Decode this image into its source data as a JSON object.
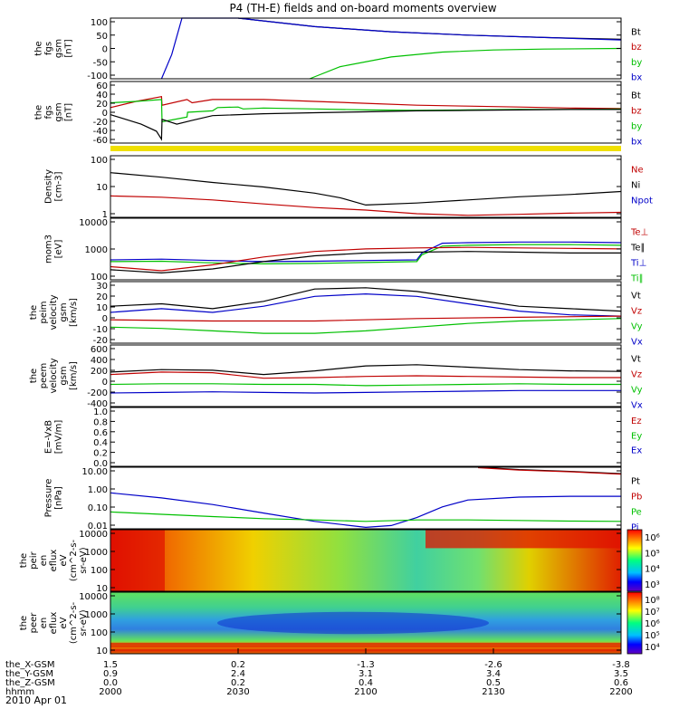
{
  "title": "P4 (TH-E) fields and on-board moments overview",
  "date": "2010 Apr 01",
  "colors": {
    "black": "#000000",
    "red": "#c00000",
    "green": "#00c000",
    "blue": "#0000c8",
    "yellow": "#f0e000"
  },
  "chart_data": [
    {
      "type": "line",
      "ylabel_lines": [
        "the",
        "fgs",
        "gsm",
        "[nT]"
      ],
      "yticks": [
        "100",
        "50",
        "0",
        "-50",
        "-100"
      ],
      "ylim": [
        -100,
        100
      ],
      "legend": [
        {
          "label": "Bt",
          "color": "black"
        },
        {
          "label": "bz",
          "color": "red"
        },
        {
          "label": "by",
          "color": "green"
        },
        {
          "label": "bx",
          "color": "blue"
        }
      ],
      "series": [
        {
          "color": "black",
          "x": [
            0.25,
            0.4,
            0.55,
            0.7,
            0.85,
            1.0
          ],
          "y": [
            100,
            72,
            55,
            44,
            36,
            30
          ]
        },
        {
          "color": "green",
          "x": [
            0.39,
            0.45,
            0.55,
            0.65,
            0.75,
            0.85,
            1.0
          ],
          "y": [
            -100,
            -60,
            -28,
            -12,
            -5,
            -2,
            0
          ]
        },
        {
          "color": "blue",
          "x": [
            0.1,
            0.12,
            0.14,
            0.25,
            0.4,
            0.55,
            0.7,
            0.85,
            1.0
          ],
          "y": [
            -100,
            -20,
            100,
            100,
            72,
            55,
            44,
            36,
            28
          ]
        }
      ]
    },
    {
      "type": "line",
      "ylabel_lines": [
        "the",
        "fgs",
        "gsm",
        "[nT]"
      ],
      "yticks": [
        "60",
        "40",
        "20",
        "0",
        "-20",
        "-40",
        "-60"
      ],
      "ylim": [
        -70,
        60
      ],
      "legend": [
        {
          "label": "Bt",
          "color": "black"
        },
        {
          "label": "bz",
          "color": "red"
        },
        {
          "label": "by",
          "color": "green"
        },
        {
          "label": "bx",
          "color": "blue"
        }
      ],
      "series": [
        {
          "color": "red",
          "x": [
            0,
            0.05,
            0.1,
            0.101,
            0.15,
            0.16,
            0.2,
            0.3,
            0.4,
            0.5,
            0.6,
            0.7,
            0.8,
            0.9,
            1.0
          ],
          "y": [
            5,
            18,
            28,
            10,
            22,
            15,
            22,
            22,
            18,
            14,
            10,
            8,
            6,
            4,
            3
          ]
        },
        {
          "color": "green",
          "x": [
            0,
            0.05,
            0.1,
            0.101,
            0.15,
            0.151,
            0.2,
            0.21,
            0.25,
            0.26,
            0.3,
            0.4,
            0.5,
            0.6,
            0.7,
            0.8,
            0.9,
            1.0
          ],
          "y": [
            15,
            18,
            22,
            -25,
            -15,
            -5,
            -2,
            5,
            6,
            2,
            4,
            2,
            0,
            -1,
            0,
            1,
            1,
            2
          ]
        },
        {
          "color": "black",
          "x": [
            0,
            0.03,
            0.06,
            0.09,
            0.1,
            0.101,
            0.13,
            0.16,
            0.2,
            0.3,
            0.4,
            0.5,
            0.6,
            0.7,
            0.8,
            0.9,
            1.0
          ],
          "y": [
            -10,
            -20,
            -30,
            -45,
            -62,
            -20,
            -30,
            -22,
            -12,
            -8,
            -6,
            -4,
            -2,
            -1,
            0,
            1,
            1
          ]
        }
      ],
      "status_bar_color": "yellow"
    },
    {
      "type": "line",
      "yscale": "log",
      "ylabel_lines": [
        "Density",
        "[cm-3]"
      ],
      "yticks": [
        "100",
        "10",
        "1"
      ],
      "ylim": [
        0.2,
        200
      ],
      "legend": [
        {
          "label": "Ne",
          "color": "red"
        },
        {
          "label": "Ni",
          "color": "black"
        },
        {
          "label": "Npot",
          "color": "blue"
        }
      ],
      "series": [
        {
          "color": "black",
          "x": [
            0,
            0.1,
            0.2,
            0.3,
            0.4,
            0.45,
            0.5,
            0.6,
            0.7,
            0.8,
            0.9,
            1.0
          ],
          "y": [
            30,
            18,
            10,
            6,
            3,
            1.8,
            0.8,
            1.0,
            1.4,
            2.0,
            2.6,
            3.6
          ]
        },
        {
          "color": "red",
          "x": [
            0,
            0.1,
            0.2,
            0.3,
            0.4,
            0.5,
            0.6,
            0.7,
            0.8,
            0.9,
            1.0
          ],
          "y": [
            2.2,
            1.9,
            1.4,
            0.9,
            0.6,
            0.45,
            0.3,
            0.25,
            0.28,
            0.32,
            0.35
          ]
        }
      ]
    },
    {
      "type": "line",
      "yscale": "log",
      "ylabel_lines": [
        "mom3",
        "[eV]"
      ],
      "yticks": [
        "10000",
        "1000",
        "100"
      ],
      "ylim": [
        40,
        20000
      ],
      "legend": [
        {
          "label": "Te⊥",
          "color": "red"
        },
        {
          "label": "Te∥",
          "color": "black"
        },
        {
          "label": "Ti⊥",
          "color": "blue"
        },
        {
          "label": "Ti∥",
          "color": "green"
        }
      ],
      "series": [
        {
          "color": "blue",
          "x": [
            0,
            0.1,
            0.2,
            0.3,
            0.4,
            0.5,
            0.6,
            0.61,
            0.65,
            0.7,
            0.8,
            0.9,
            1.0
          ],
          "y": [
            300,
            320,
            280,
            250,
            260,
            280,
            300,
            600,
            1600,
            1700,
            1800,
            1800,
            1700
          ]
        },
        {
          "color": "green",
          "x": [
            0,
            0.1,
            0.2,
            0.3,
            0.4,
            0.5,
            0.6,
            0.61,
            0.65,
            0.7,
            0.8,
            0.9,
            1.0
          ],
          "y": [
            250,
            260,
            220,
            200,
            210,
            230,
            250,
            500,
            1200,
            1300,
            1400,
            1400,
            1300
          ]
        },
        {
          "color": "red",
          "x": [
            0,
            0.1,
            0.2,
            0.3,
            0.4,
            0.5,
            0.6,
            0.7,
            0.8,
            0.9,
            1.0
          ],
          "y": [
            150,
            100,
            180,
            400,
            700,
            900,
            1000,
            1050,
            1000,
            950,
            900
          ]
        },
        {
          "color": "black",
          "x": [
            0,
            0.1,
            0.2,
            0.3,
            0.4,
            0.5,
            0.6,
            0.7,
            0.8,
            0.9,
            1.0
          ],
          "y": [
            110,
            80,
            120,
            250,
            450,
            600,
            650,
            700,
            650,
            600,
            600
          ]
        }
      ]
    },
    {
      "type": "line",
      "ylabel_lines": [
        "the",
        "peim",
        "velocity",
        "gsm",
        "[km/s]"
      ],
      "yticks": [
        "30",
        "20",
        "10",
        "0",
        "-10",
        "-20"
      ],
      "ylim": [
        -20,
        30
      ],
      "legend": [
        {
          "label": "Vt",
          "color": "black"
        },
        {
          "label": "Vz",
          "color": "red"
        },
        {
          "label": "Vy",
          "color": "green"
        },
        {
          "label": "Vx",
          "color": "blue"
        }
      ],
      "series": [
        {
          "color": "black",
          "x": [
            0,
            0.1,
            0.2,
            0.3,
            0.4,
            0.5,
            0.6,
            0.7,
            0.8,
            0.9,
            1.0
          ],
          "y": [
            10,
            12,
            8,
            14,
            24,
            25,
            22,
            16,
            10,
            8,
            6
          ]
        },
        {
          "color": "blue",
          "x": [
            0,
            0.1,
            0.2,
            0.3,
            0.4,
            0.5,
            0.6,
            0.7,
            0.8,
            0.9,
            1.0
          ],
          "y": [
            5,
            8,
            5,
            10,
            18,
            20,
            18,
            12,
            6,
            3,
            2
          ]
        },
        {
          "color": "red",
          "x": [
            0,
            0.2,
            0.4,
            0.6,
            0.8,
            1.0
          ],
          "y": [
            -1,
            -2,
            -2,
            0,
            1,
            2
          ]
        },
        {
          "color": "green",
          "x": [
            0,
            0.1,
            0.2,
            0.3,
            0.4,
            0.5,
            0.6,
            0.7,
            0.8,
            0.9,
            1.0
          ],
          "y": [
            -7,
            -8,
            -10,
            -12,
            -12,
            -10,
            -7,
            -4,
            -2,
            -1,
            0
          ]
        }
      ]
    },
    {
      "type": "line",
      "ylabel_lines": [
        "the",
        "peem",
        "velocity",
        "gsm",
        "[km/s]"
      ],
      "yticks": [
        "600",
        "400",
        "200",
        "0",
        "-200",
        "-400"
      ],
      "ylim": [
        -400,
        600
      ],
      "legend": [
        {
          "label": "Vt",
          "color": "black"
        },
        {
          "label": "Vz",
          "color": "red"
        },
        {
          "label": "Vy",
          "color": "green"
        },
        {
          "label": "Vx",
          "color": "blue"
        }
      ],
      "series": [
        {
          "color": "black",
          "x": [
            0,
            0.1,
            0.2,
            0.3,
            0.4,
            0.5,
            0.6,
            0.7,
            0.8,
            0.9,
            1.0
          ],
          "y": [
            160,
            200,
            190,
            120,
            180,
            260,
            280,
            240,
            200,
            180,
            170
          ]
        },
        {
          "color": "red",
          "x": [
            0,
            0.1,
            0.2,
            0.3,
            0.4,
            0.5,
            0.6,
            0.7,
            0.8,
            0.9,
            1.0
          ],
          "y": [
            120,
            160,
            150,
            60,
            70,
            90,
            100,
            90,
            80,
            70,
            70
          ]
        },
        {
          "color": "green",
          "x": [
            0,
            0.1,
            0.2,
            0.3,
            0.4,
            0.5,
            0.6,
            0.7,
            0.8,
            0.9,
            1.0
          ],
          "y": [
            -40,
            -30,
            -30,
            -40,
            -40,
            -60,
            -50,
            -40,
            -30,
            -40,
            -40
          ]
        },
        {
          "color": "blue",
          "x": [
            0,
            0.1,
            0.2,
            0.3,
            0.4,
            0.5,
            0.6,
            0.7,
            0.8,
            0.9,
            1.0
          ],
          "y": [
            -180,
            -170,
            -160,
            -170,
            -180,
            -170,
            -160,
            -150,
            -140,
            -140,
            -140
          ]
        }
      ]
    },
    {
      "type": "line",
      "ylabel_lines": [
        "E=-VxB",
        "[mV/m]"
      ],
      "yticks": [
        "1.0",
        "0.8",
        "0.6",
        "0.4",
        "0.2",
        "0.0"
      ],
      "ylim": [
        0,
        1
      ],
      "legend": [
        {
          "label": "Ez",
          "color": "red"
        },
        {
          "label": "Ey",
          "color": "green"
        },
        {
          "label": "Ex",
          "color": "blue"
        }
      ],
      "series": []
    },
    {
      "type": "line",
      "yscale": "log",
      "ylabel_lines": [
        "Pressure",
        "[nPa]"
      ],
      "yticks": [
        "10.00",
        "1.00",
        "0.10",
        "0.01"
      ],
      "ylim": [
        0.01,
        20
      ],
      "legend": [
        {
          "label": "Pt",
          "color": "black"
        },
        {
          "label": "Pb",
          "color": "red"
        },
        {
          "label": "Pe",
          "color": "green"
        },
        {
          "label": "Pi",
          "color": "blue"
        }
      ],
      "series": [
        {
          "color": "blue",
          "x": [
            0,
            0.1,
            0.2,
            0.3,
            0.4,
            0.5,
            0.55,
            0.6,
            0.65,
            0.7,
            0.8,
            0.9,
            1.0
          ],
          "y": [
            0.85,
            0.45,
            0.2,
            0.07,
            0.025,
            0.012,
            0.015,
            0.04,
            0.15,
            0.35,
            0.5,
            0.55,
            0.55
          ]
        },
        {
          "color": "green",
          "x": [
            0,
            0.1,
            0.2,
            0.3,
            0.4,
            0.5,
            0.6,
            0.7,
            0.8,
            0.9,
            1.0
          ],
          "y": [
            0.08,
            0.06,
            0.045,
            0.035,
            0.03,
            0.025,
            0.03,
            0.03,
            0.028,
            0.026,
            0.025
          ]
        },
        {
          "color": "black",
          "x": [
            0.72,
            0.8,
            0.9,
            1.0
          ],
          "y": [
            20,
            15,
            12,
            9
          ]
        },
        {
          "color": "red",
          "x": [
            0.72,
            0.8,
            0.9,
            1.0
          ],
          "y": [
            19,
            14,
            11.5,
            8.5
          ]
        }
      ]
    },
    {
      "type": "heatmap",
      "ylabel_lines": [
        "the",
        "peir",
        "en",
        "eflux",
        "eV",
        "(cm^2-s-",
        "sr-eV)"
      ],
      "yticks": [
        "10000",
        "1000",
        "100",
        "10"
      ],
      "colorbar_ticks": [
        "10⁶",
        "10⁵",
        "10⁴",
        "10³"
      ]
    },
    {
      "type": "heatmap",
      "ylabel_lines": [
        "the",
        "peer",
        "en",
        "eflux",
        "eV",
        "(cm^2-s-",
        "sr-eV)"
      ],
      "yticks": [
        "10000",
        "1000",
        "100",
        "10"
      ],
      "colorbar_ticks": [
        "10⁸",
        "10⁷",
        "10⁶",
        "10⁵",
        "10⁴"
      ]
    }
  ],
  "xaxis": {
    "rows": [
      {
        "label": "the_X-GSM",
        "values": [
          "1.5",
          "0.2",
          "-1.3",
          "-2.6",
          "-3.8"
        ]
      },
      {
        "label": "the_Y-GSM",
        "values": [
          "0.9",
          "2.4",
          "3.1",
          "3.4",
          "3.5"
        ]
      },
      {
        "label": "the_Z-GSM",
        "values": [
          "0.0",
          "0.2",
          "0.4",
          "0.5",
          "0.6"
        ]
      },
      {
        "label": "hhmm",
        "values": [
          "2000",
          "2030",
          "2100",
          "2130",
          "2200"
        ]
      }
    ]
  }
}
